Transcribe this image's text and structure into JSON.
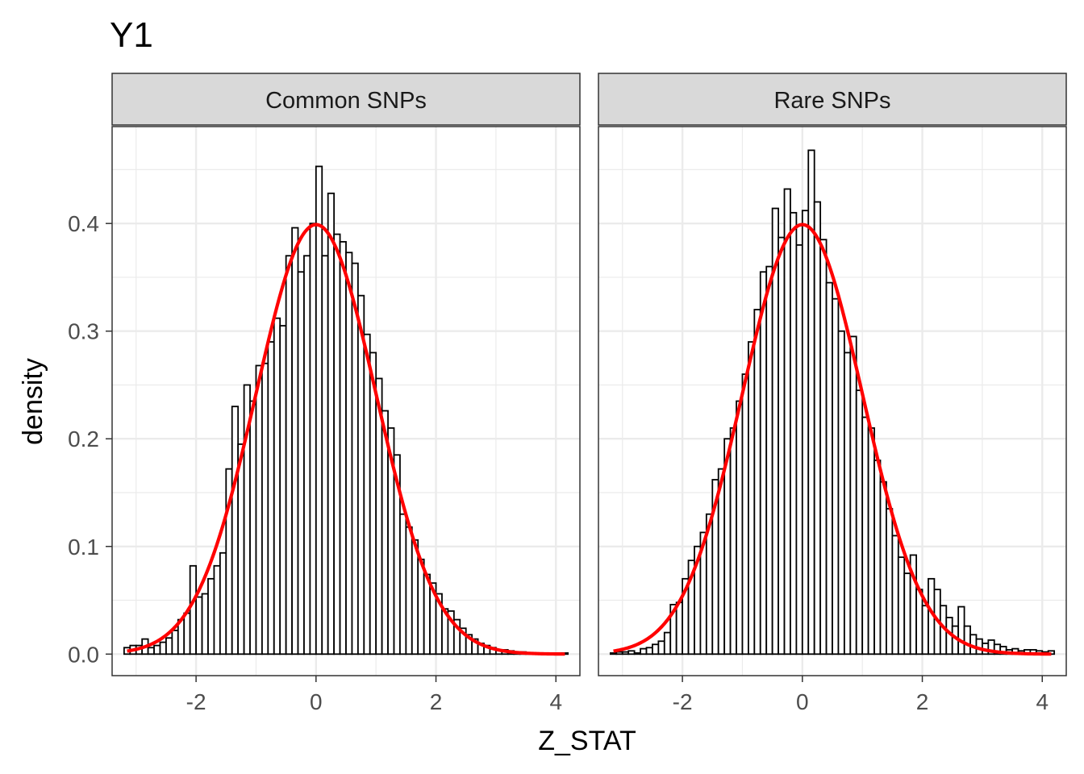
{
  "chart_data": {
    "type": "histogram",
    "title": "Y1",
    "xlabel": "Z_STAT",
    "ylabel": "density",
    "xlim": [
      -3.4,
      4.4
    ],
    "ylim": [
      -0.02,
      0.49
    ],
    "x_ticks": [
      "-2",
      "0",
      "2",
      "4"
    ],
    "y_ticks": [
      "0.0",
      "0.1",
      "0.2",
      "0.3",
      "0.4"
    ],
    "x_tick_values": [
      -2,
      0,
      2,
      4
    ],
    "y_tick_values": [
      0,
      0.1,
      0.2,
      0.3,
      0.4
    ],
    "bin_width": 0.1,
    "grid": true,
    "colors": {
      "bar_fill": "#ffffff",
      "bar_stroke": "#000000",
      "curve": "#ff0000",
      "strip_fill": "#d9d9d9",
      "grid": "#ebebeb",
      "axis_text": "#4d4d4d"
    },
    "overlay_curve": {
      "type": "normal_density",
      "mean": 0,
      "sd": 1
    },
    "panels": [
      {
        "strip_label": "Common SNPs",
        "bins": [
          {
            "x": -3.15,
            "y": 0.006
          },
          {
            "x": -3.05,
            "y": 0.008
          },
          {
            "x": -2.95,
            "y": 0.008
          },
          {
            "x": -2.85,
            "y": 0.014
          },
          {
            "x": -2.75,
            "y": 0.006
          },
          {
            "x": -2.65,
            "y": 0.008
          },
          {
            "x": -2.55,
            "y": 0.011
          },
          {
            "x": -2.45,
            "y": 0.015
          },
          {
            "x": -2.35,
            "y": 0.022
          },
          {
            "x": -2.25,
            "y": 0.032
          },
          {
            "x": -2.15,
            "y": 0.038
          },
          {
            "x": -2.05,
            "y": 0.082
          },
          {
            "x": -1.95,
            "y": 0.053
          },
          {
            "x": -1.85,
            "y": 0.056
          },
          {
            "x": -1.75,
            "y": 0.07
          },
          {
            "x": -1.65,
            "y": 0.082
          },
          {
            "x": -1.55,
            "y": 0.094
          },
          {
            "x": -1.45,
            "y": 0.172
          },
          {
            "x": -1.35,
            "y": 0.23
          },
          {
            "x": -1.25,
            "y": 0.195
          },
          {
            "x": -1.15,
            "y": 0.25
          },
          {
            "x": -1.05,
            "y": 0.235
          },
          {
            "x": -0.95,
            "y": 0.268
          },
          {
            "x": -0.85,
            "y": 0.27
          },
          {
            "x": -0.75,
            "y": 0.29
          },
          {
            "x": -0.65,
            "y": 0.312
          },
          {
            "x": -0.55,
            "y": 0.305
          },
          {
            "x": -0.45,
            "y": 0.37
          },
          {
            "x": -0.35,
            "y": 0.396
          },
          {
            "x": -0.25,
            "y": 0.355
          },
          {
            "x": -0.15,
            "y": 0.37
          },
          {
            "x": -0.05,
            "y": 0.4
          },
          {
            "x": 0.05,
            "y": 0.453
          },
          {
            "x": 0.15,
            "y": 0.37
          },
          {
            "x": 0.25,
            "y": 0.428
          },
          {
            "x": 0.35,
            "y": 0.39
          },
          {
            "x": 0.45,
            "y": 0.383
          },
          {
            "x": 0.55,
            "y": 0.373
          },
          {
            "x": 0.65,
            "y": 0.363
          },
          {
            "x": 0.75,
            "y": 0.333
          },
          {
            "x": 0.85,
            "y": 0.297
          },
          {
            "x": 0.95,
            "y": 0.28
          },
          {
            "x": 1.05,
            "y": 0.256
          },
          {
            "x": 1.15,
            "y": 0.226
          },
          {
            "x": 1.25,
            "y": 0.21
          },
          {
            "x": 1.35,
            "y": 0.185
          },
          {
            "x": 1.45,
            "y": 0.13
          },
          {
            "x": 1.55,
            "y": 0.118
          },
          {
            "x": 1.65,
            "y": 0.106
          },
          {
            "x": 1.75,
            "y": 0.088
          },
          {
            "x": 1.85,
            "y": 0.074
          },
          {
            "x": 1.95,
            "y": 0.066
          },
          {
            "x": 2.05,
            "y": 0.056
          },
          {
            "x": 2.15,
            "y": 0.042
          },
          {
            "x": 2.25,
            "y": 0.04
          },
          {
            "x": 2.35,
            "y": 0.032
          },
          {
            "x": 2.45,
            "y": 0.024
          },
          {
            "x": 2.55,
            "y": 0.018
          },
          {
            "x": 2.65,
            "y": 0.014
          },
          {
            "x": 2.75,
            "y": 0.01
          },
          {
            "x": 2.85,
            "y": 0.008
          },
          {
            "x": 2.95,
            "y": 0.006
          },
          {
            "x": 3.05,
            "y": 0.004
          },
          {
            "x": 3.15,
            "y": 0.004
          },
          {
            "x": 3.25,
            "y": 0.003
          },
          {
            "x": 3.35,
            "y": 0.002
          },
          {
            "x": 3.45,
            "y": 0.002
          },
          {
            "x": 3.55,
            "y": 0.001
          },
          {
            "x": 3.65,
            "y": 0.001
          },
          {
            "x": 3.75,
            "y": 0.001
          },
          {
            "x": 3.85,
            "y": 0.001
          },
          {
            "x": 3.95,
            "y": 0.001
          },
          {
            "x": 4.05,
            "y": 0.001
          },
          {
            "x": 4.15,
            "y": 0.001
          }
        ]
      },
      {
        "strip_label": "Rare SNPs",
        "bins": [
          {
            "x": -3.15,
            "y": 0.001
          },
          {
            "x": -3.05,
            "y": 0.002
          },
          {
            "x": -2.95,
            "y": 0.002
          },
          {
            "x": -2.85,
            "y": 0.003
          },
          {
            "x": -2.75,
            "y": 0.001
          },
          {
            "x": -2.65,
            "y": 0.005
          },
          {
            "x": -2.55,
            "y": 0.006
          },
          {
            "x": -2.45,
            "y": 0.009
          },
          {
            "x": -2.35,
            "y": 0.012
          },
          {
            "x": -2.25,
            "y": 0.02
          },
          {
            "x": -2.15,
            "y": 0.046
          },
          {
            "x": -2.05,
            "y": 0.048
          },
          {
            "x": -1.95,
            "y": 0.07
          },
          {
            "x": -1.85,
            "y": 0.087
          },
          {
            "x": -1.75,
            "y": 0.1
          },
          {
            "x": -1.65,
            "y": 0.113
          },
          {
            "x": -1.55,
            "y": 0.13
          },
          {
            "x": -1.45,
            "y": 0.162
          },
          {
            "x": -1.35,
            "y": 0.172
          },
          {
            "x": -1.25,
            "y": 0.2
          },
          {
            "x": -1.15,
            "y": 0.21
          },
          {
            "x": -1.05,
            "y": 0.235
          },
          {
            "x": -0.95,
            "y": 0.26
          },
          {
            "x": -0.85,
            "y": 0.29
          },
          {
            "x": -0.75,
            "y": 0.32
          },
          {
            "x": -0.65,
            "y": 0.355
          },
          {
            "x": -0.55,
            "y": 0.36
          },
          {
            "x": -0.45,
            "y": 0.414
          },
          {
            "x": -0.35,
            "y": 0.387
          },
          {
            "x": -0.25,
            "y": 0.432
          },
          {
            "x": -0.15,
            "y": 0.41
          },
          {
            "x": -0.05,
            "y": 0.38
          },
          {
            "x": 0.05,
            "y": 0.412
          },
          {
            "x": 0.15,
            "y": 0.468
          },
          {
            "x": 0.25,
            "y": 0.42
          },
          {
            "x": 0.35,
            "y": 0.385
          },
          {
            "x": 0.45,
            "y": 0.345
          },
          {
            "x": 0.55,
            "y": 0.33
          },
          {
            "x": 0.65,
            "y": 0.3
          },
          {
            "x": 0.75,
            "y": 0.28
          },
          {
            "x": 0.85,
            "y": 0.295
          },
          {
            "x": 0.95,
            "y": 0.245
          },
          {
            "x": 1.05,
            "y": 0.22
          },
          {
            "x": 1.15,
            "y": 0.21
          },
          {
            "x": 1.25,
            "y": 0.18
          },
          {
            "x": 1.35,
            "y": 0.16
          },
          {
            "x": 1.45,
            "y": 0.135
          },
          {
            "x": 1.55,
            "y": 0.11
          },
          {
            "x": 1.65,
            "y": 0.09
          },
          {
            "x": 1.75,
            "y": 0.075
          },
          {
            "x": 1.85,
            "y": 0.092
          },
          {
            "x": 1.95,
            "y": 0.06
          },
          {
            "x": 2.05,
            "y": 0.045
          },
          {
            "x": 2.15,
            "y": 0.07
          },
          {
            "x": 2.25,
            "y": 0.06
          },
          {
            "x": 2.35,
            "y": 0.045
          },
          {
            "x": 2.45,
            "y": 0.034
          },
          {
            "x": 2.55,
            "y": 0.026
          },
          {
            "x": 2.65,
            "y": 0.044
          },
          {
            "x": 2.75,
            "y": 0.026
          },
          {
            "x": 2.85,
            "y": 0.018
          },
          {
            "x": 2.95,
            "y": 0.014
          },
          {
            "x": 3.05,
            "y": 0.01
          },
          {
            "x": 3.15,
            "y": 0.013
          },
          {
            "x": 3.25,
            "y": 0.009
          },
          {
            "x": 3.35,
            "y": 0.007
          },
          {
            "x": 3.45,
            "y": 0.004
          },
          {
            "x": 3.55,
            "y": 0.005
          },
          {
            "x": 3.65,
            "y": 0.003
          },
          {
            "x": 3.75,
            "y": 0.004
          },
          {
            "x": 3.85,
            "y": 0.004
          },
          {
            "x": 3.95,
            "y": 0.003
          },
          {
            "x": 4.05,
            "y": 0.002
          },
          {
            "x": 4.15,
            "y": 0.003
          }
        ]
      }
    ]
  }
}
